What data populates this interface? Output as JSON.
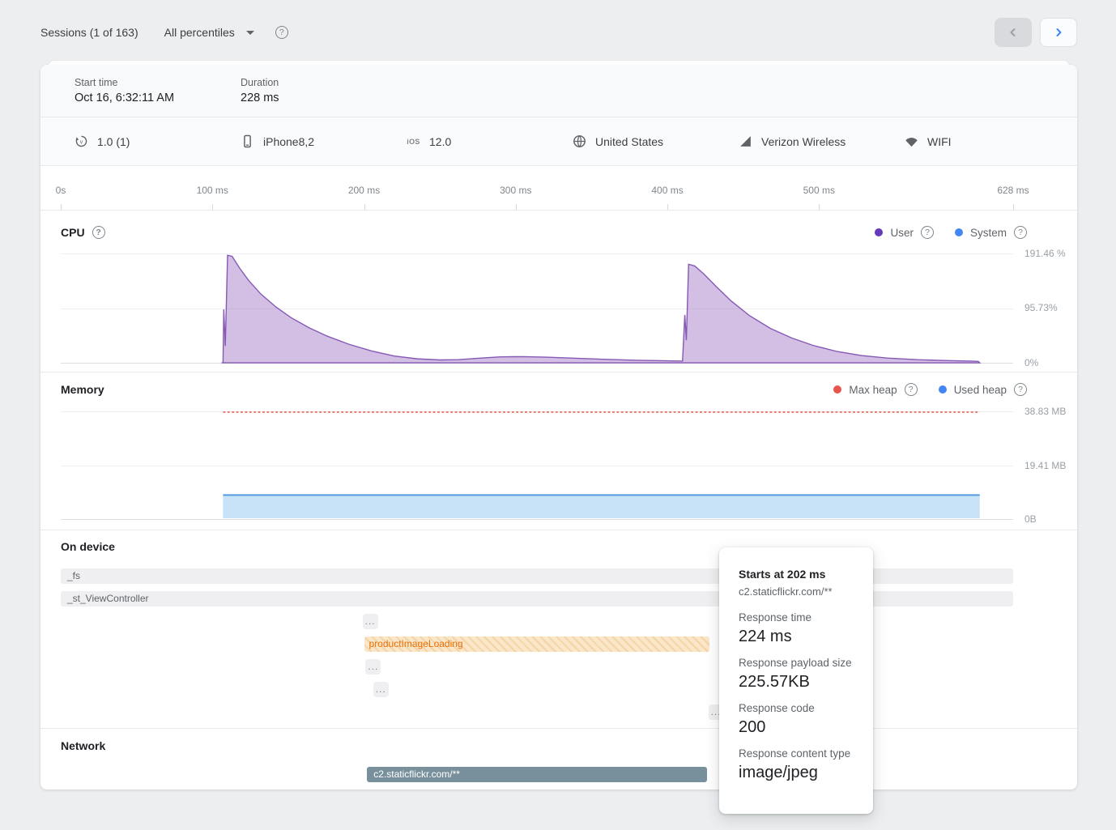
{
  "topbar": {
    "sessions_label": "Sessions (1 of 163)",
    "percentiles_label": "All percentiles"
  },
  "session": {
    "start_time_label": "Start time",
    "start_time_value": "Oct 16, 6:32:11 AM",
    "duration_label": "Duration",
    "duration_value": "228 ms"
  },
  "device": {
    "app_version": "1.0 (1)",
    "model": "iPhone8,2",
    "os_badge": "iOS",
    "os_version": "12.0",
    "country": "United States",
    "carrier": "Verizon Wireless",
    "radio": "WIFI"
  },
  "timeline": {
    "total_ms": 628,
    "ticks": [
      {
        "ms": 0,
        "label": "0s"
      },
      {
        "ms": 100,
        "label": "100 ms"
      },
      {
        "ms": 200,
        "label": "200 ms"
      },
      {
        "ms": 300,
        "label": "300 ms"
      },
      {
        "ms": 400,
        "label": "400 ms"
      },
      {
        "ms": 500,
        "label": "500 ms"
      },
      {
        "ms": 628,
        "label": "628 ms"
      }
    ]
  },
  "chart_data": [
    {
      "id": "cpu",
      "type": "area",
      "title": "CPU",
      "x_unit": "ms",
      "x_range": [
        0,
        628
      ],
      "y_max_pct": 191.46,
      "y_ticks": [
        "191.46 %",
        "95.73%",
        "0%"
      ],
      "legend": [
        {
          "label": "User",
          "color": "#673AB7"
        },
        {
          "label": "System",
          "color": "#4285F4"
        }
      ],
      "series": [
        {
          "name": "User",
          "stroke": "#8659B5",
          "fill": "rgba(148,103,189,0.42)",
          "points": [
            [
              106,
              0
            ],
            [
              107,
              0
            ],
            [
              107.5,
              95
            ],
            [
              108.5,
              30
            ],
            [
              110,
              191
            ],
            [
              113,
              189
            ],
            [
              118,
              168
            ],
            [
              124,
              146
            ],
            [
              132,
              122
            ],
            [
              142,
              99
            ],
            [
              152,
              80
            ],
            [
              164,
              62
            ],
            [
              176,
              47
            ],
            [
              190,
              33
            ],
            [
              205,
              21
            ],
            [
              220,
              12
            ],
            [
              235,
              7
            ],
            [
              250,
              5
            ],
            [
              262,
              5.5
            ],
            [
              275,
              8
            ],
            [
              290,
              10.5
            ],
            [
              305,
              11
            ],
            [
              320,
              10
            ],
            [
              340,
              8
            ],
            [
              360,
              6
            ],
            [
              380,
              4.5
            ],
            [
              400,
              3.5
            ],
            [
              410,
              3
            ],
            [
              411.5,
              85
            ],
            [
              412.5,
              40
            ],
            [
              414,
              175
            ],
            [
              418,
              172
            ],
            [
              424,
              158
            ],
            [
              432,
              136
            ],
            [
              442,
              110
            ],
            [
              454,
              84
            ],
            [
              468,
              61
            ],
            [
              482,
              44
            ],
            [
              496,
              31
            ],
            [
              512,
              20
            ],
            [
              528,
              13
            ],
            [
              545,
              8.5
            ],
            [
              565,
              5.5
            ],
            [
              585,
              4
            ],
            [
              600,
              3
            ],
            [
              605,
              2.5
            ],
            [
              606,
              0
            ]
          ]
        },
        {
          "name": "System",
          "stroke": "#4285F4",
          "points": []
        }
      ]
    },
    {
      "id": "memory",
      "type": "area",
      "title": "Memory",
      "y_max_mb": 38.83,
      "y_ticks": [
        "38.83 MB",
        "19.41 MB",
        "0B"
      ],
      "legend": [
        {
          "label": "Max heap",
          "color": "#E8554D"
        },
        {
          "label": "Used heap",
          "color": "#4285F4"
        }
      ],
      "max_heap": {
        "value_mb": 38.83,
        "start_ms": 107,
        "end_ms": 606,
        "color": "#E4635A"
      },
      "used_heap": {
        "value_mb": 8.5,
        "start_ms": 107,
        "end_ms": 606,
        "stroke": "#579BE0",
        "fill": "#C8E2F7"
      }
    }
  ],
  "on_device": {
    "title": "On device",
    "rows": [
      {
        "label": "_fs",
        "start_ms": 0,
        "end_ms": 628,
        "type": "trace"
      },
      {
        "label": "_st_ViewController",
        "start_ms": 0,
        "end_ms": 628,
        "type": "trace"
      },
      {
        "label": "...",
        "start_ms": 199,
        "end_ms": 209,
        "type": "collapsed"
      },
      {
        "label": "productImageLoading",
        "start_ms": 200,
        "end_ms": 428,
        "type": "highlight"
      },
      {
        "label": "...",
        "start_ms": 201,
        "end_ms": 211,
        "type": "collapsed"
      },
      {
        "label": "...",
        "start_ms": 206,
        "end_ms": 216,
        "type": "collapsed"
      },
      {
        "label": "...",
        "start_ms": 427,
        "end_ms": 437,
        "type": "collapsed"
      }
    ]
  },
  "network": {
    "title": "Network",
    "rows": [
      {
        "label": "c2.staticflickr.com/**",
        "start_ms": 202,
        "end_ms": 426,
        "type": "network"
      }
    ]
  },
  "tooltip": {
    "title": "Starts at 202 ms",
    "subtitle": "c2.staticflickr.com/**",
    "fields": [
      {
        "label": "Response time",
        "value": "224 ms"
      },
      {
        "label": "Response payload size",
        "value": "225.57KB"
      },
      {
        "label": "Response code",
        "value": "200"
      },
      {
        "label": "Response content type",
        "value": "image/jpeg"
      }
    ]
  },
  "colors": {
    "accent_blue": "#4285F4",
    "cpu_user_purple": "#673AB7",
    "max_heap_red": "#E8554D",
    "network_bar": "#78909C",
    "highlight_trace_text": "#E8710A"
  }
}
